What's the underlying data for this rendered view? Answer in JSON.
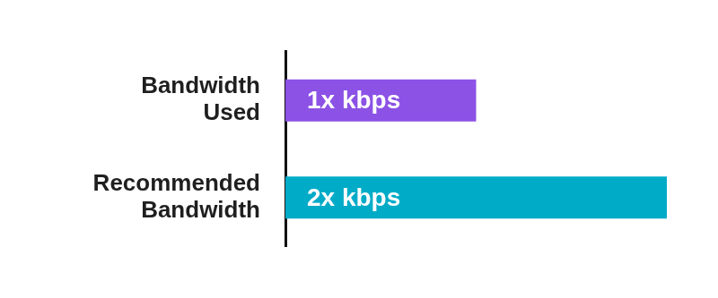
{
  "chart_data": {
    "type": "bar",
    "orientation": "horizontal",
    "categories": [
      "Bandwidth Used",
      "Recommended Bandwidth"
    ],
    "values": [
      1,
      2
    ],
    "value_labels": [
      "1x kbps",
      "2x kbps"
    ],
    "colors": [
      "#8c52e6",
      "#00abc7"
    ],
    "xlim": [
      0,
      2
    ],
    "grid": false,
    "data_labels": true,
    "tick_labels": "y"
  }
}
